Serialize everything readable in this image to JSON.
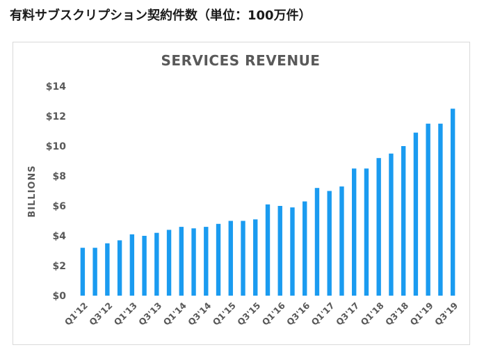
{
  "heading": "有料サブスクリプション契約件数（単位：100万件）",
  "chart_data": {
    "type": "bar",
    "title": "SERVICES REVENUE",
    "xlabel": "",
    "ylabel": "BILLIONS",
    "ylim": [
      0,
      14
    ],
    "yticks": [
      0,
      2,
      4,
      6,
      8,
      10,
      12,
      14
    ],
    "ytick_labels": [
      "$0",
      "$2",
      "$4",
      "$6",
      "$8",
      "$10",
      "$12",
      "$14"
    ],
    "categories": [
      "Q1'12",
      "Q2'12",
      "Q3'12",
      "Q4'12",
      "Q1'13",
      "Q2'13",
      "Q3'13",
      "Q4'13",
      "Q1'14",
      "Q2'14",
      "Q3'14",
      "Q4'14",
      "Q1'15",
      "Q2'15",
      "Q3'15",
      "Q4'15",
      "Q1'16",
      "Q2'16",
      "Q3'16",
      "Q4'16",
      "Q1'17",
      "Q2'17",
      "Q3'17",
      "Q4'17",
      "Q1'18",
      "Q2'18",
      "Q3'18",
      "Q4'18",
      "Q1'19",
      "Q2'19",
      "Q3'19"
    ],
    "xtick_labels": [
      "Q1'12",
      "Q3'12",
      "Q1'13",
      "Q3'13",
      "Q1'14",
      "Q3'14",
      "Q1'15",
      "Q3'15",
      "Q1'16",
      "Q3'16",
      "Q1'17",
      "Q3'17",
      "Q1'18",
      "Q3'18",
      "Q1'19",
      "Q3'19"
    ],
    "values": [
      3.2,
      3.2,
      3.5,
      3.7,
      4.1,
      4.0,
      4.2,
      4.4,
      4.6,
      4.5,
      4.6,
      4.8,
      5.0,
      5.0,
      5.1,
      6.1,
      6.0,
      5.9,
      6.3,
      7.2,
      7.0,
      7.3,
      8.5,
      8.5,
      9.2,
      9.5,
      10.0,
      10.9,
      11.5,
      11.5,
      12.5
    ],
    "bar_color": "#1a9bf0",
    "grid": false,
    "legend": "none"
  }
}
